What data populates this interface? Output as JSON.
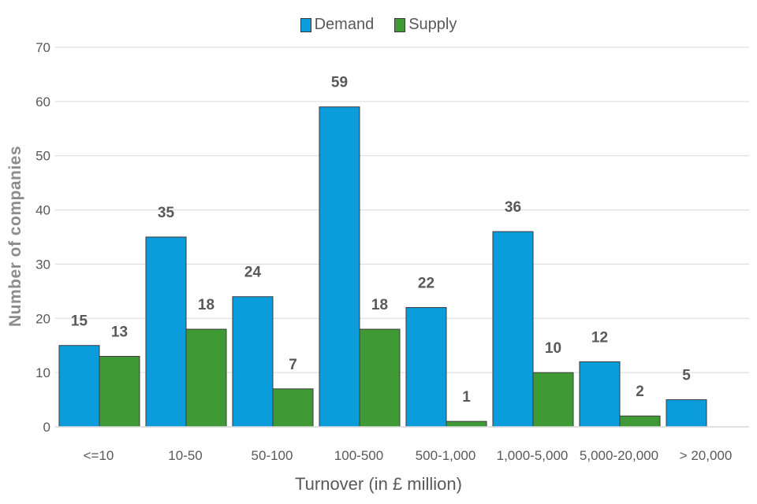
{
  "legend": {
    "demand": "Demand",
    "supply": "Supply"
  },
  "colors": {
    "demand": "#0b9ddb",
    "supply": "#3f9a35",
    "grid": "#d9d9d9",
    "tick_text": "#595959",
    "data_label": "#595959"
  },
  "chart_data": {
    "type": "bar",
    "xlabel": "Turnover (in £ million)",
    "ylabel": "Number of companies",
    "ylim": [
      0,
      70
    ],
    "yticks": [
      0,
      10,
      20,
      30,
      40,
      50,
      60,
      70
    ],
    "grid": true,
    "legend_position": "top-center",
    "categories": [
      "<=10",
      "10-50",
      "50-100",
      "100-500",
      "500-1,000",
      "1,000-5,000",
      "5,000-20,000",
      "> 20,000"
    ],
    "series": [
      {
        "name": "Demand",
        "values": [
          15,
          35,
          24,
          59,
          22,
          36,
          12,
          5
        ]
      },
      {
        "name": "Supply",
        "values": [
          13,
          18,
          7,
          18,
          1,
          10,
          2,
          null
        ]
      }
    ]
  }
}
